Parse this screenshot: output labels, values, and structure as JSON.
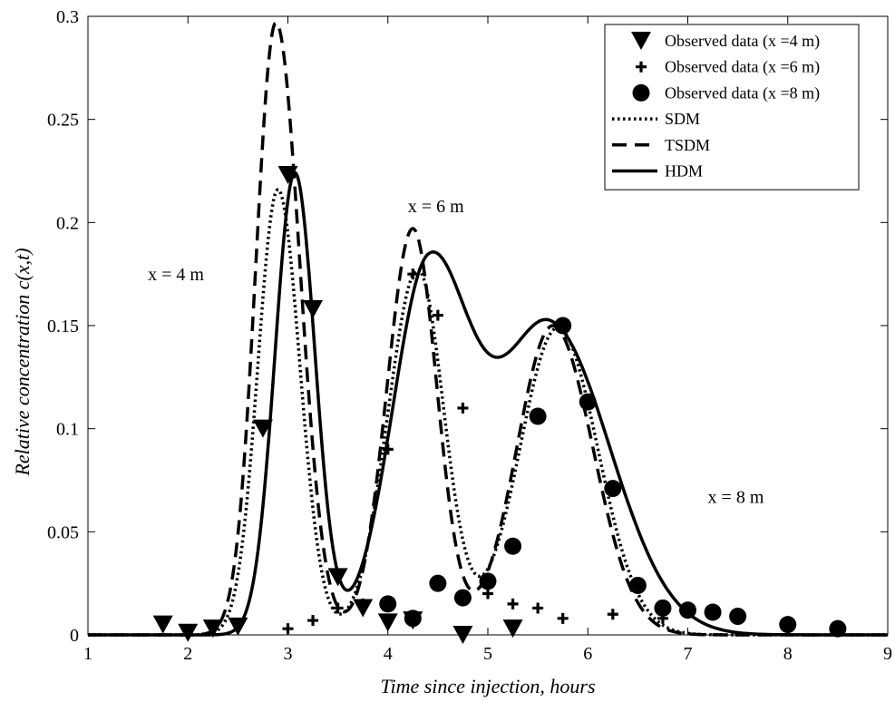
{
  "chart_data": {
    "type": "line",
    "title": "",
    "xlabel": "Time since injection, hours",
    "ylabel": "Relative concentration c(x,t)",
    "xlim": [
      1,
      9
    ],
    "ylim": [
      0,
      0.3
    ],
    "xticks": [
      "1",
      "2",
      "3",
      "4",
      "5",
      "6",
      "7",
      "8",
      "9"
    ],
    "yticks": [
      "0",
      "0.05",
      "0.1",
      "0.15",
      "0.2",
      "0.25",
      "0.3"
    ],
    "grid": false,
    "legend_position": "top-right",
    "legend": [
      {
        "label": "Observed data (x =4 m)",
        "marker": "triangle-down"
      },
      {
        "label": "Observed data (x =6 m)",
        "marker": "plus"
      },
      {
        "label": "Observed data (x =8 m)",
        "marker": "circle"
      },
      {
        "label": "SDM",
        "line": "dotted"
      },
      {
        "label": "TSDM",
        "line": "dashed"
      },
      {
        "label": "HDM",
        "line": "solid"
      }
    ],
    "annotations": [
      {
        "text": "x = 4 m",
        "x": 1.6,
        "y": 0.172
      },
      {
        "text": "x = 6 m",
        "x": 4.2,
        "y": 0.205
      },
      {
        "text": "x = 8 m",
        "x": 7.2,
        "y": 0.064
      }
    ],
    "observed": [
      {
        "marker": "triangle-down",
        "x": [
          1.75,
          2.0,
          2.25,
          2.5,
          2.75,
          3.0,
          3.25,
          3.5,
          3.75,
          4.0,
          4.25,
          4.75,
          5.25
        ],
        "y": [
          0.005,
          0.001,
          0.003,
          0.004,
          0.1,
          0.223,
          0.158,
          0.028,
          0.013,
          0.006,
          0.007,
          0.0,
          0.003
        ]
      },
      {
        "marker": "plus",
        "x": [
          3.0,
          3.25,
          3.5,
          3.75,
          4.0,
          4.25,
          4.5,
          4.75,
          5.0,
          5.25,
          5.5,
          5.75,
          6.25,
          6.75
        ],
        "y": [
          0.003,
          0.007,
          0.013,
          0.015,
          0.09,
          0.175,
          0.155,
          0.11,
          0.02,
          0.015,
          0.013,
          0.008,
          0.01,
          0.008
        ]
      },
      {
        "marker": "circle",
        "x": [
          4.0,
          4.25,
          4.5,
          4.75,
          5.0,
          5.25,
          5.5,
          5.75,
          6.0,
          6.25,
          6.5,
          6.75,
          7.0,
          7.25,
          7.5,
          8.0,
          8.5
        ],
        "y": [
          0.015,
          0.008,
          0.025,
          0.018,
          0.026,
          0.043,
          0.106,
          0.15,
          0.113,
          0.071,
          0.024,
          0.013,
          0.012,
          0.011,
          0.009,
          0.005,
          0.003
        ]
      }
    ],
    "model_peaks": [
      {
        "model": "SDM",
        "dist": "4 m",
        "t_peak": 2.9,
        "c_peak": 0.216
      },
      {
        "model": "SDM",
        "dist": "6 m",
        "t_peak": 4.3,
        "c_peak": 0.177
      },
      {
        "model": "SDM",
        "dist": "8 m",
        "t_peak": 5.7,
        "c_peak": 0.149
      },
      {
        "model": "TSDM",
        "dist": "4 m",
        "t_peak": 2.88,
        "c_peak": 0.297
      },
      {
        "model": "TSDM",
        "dist": "6 m",
        "t_peak": 4.25,
        "c_peak": 0.197
      },
      {
        "model": "TSDM",
        "dist": "8 m",
        "t_peak": 5.65,
        "c_peak": 0.15
      },
      {
        "model": "HDM",
        "dist": "4 m",
        "t_peak": 3.07,
        "c_peak": 0.224
      },
      {
        "model": "HDM",
        "dist": "6 m",
        "t_peak": 4.4,
        "c_peak": 0.175
      },
      {
        "model": "HDM",
        "dist": "8 m",
        "t_peak": 5.62,
        "c_peak": 0.15
      }
    ]
  }
}
